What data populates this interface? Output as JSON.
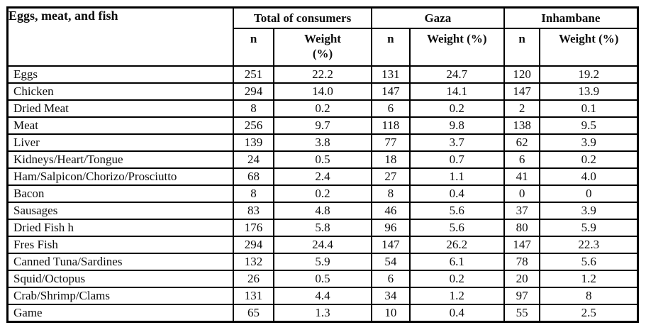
{
  "table": {
    "corner_header": "Eggs, meat, and fish",
    "groups": [
      {
        "label": "Total of consumers",
        "sub": [
          "n",
          "Weight\n(%)"
        ]
      },
      {
        "label": "Gaza",
        "sub": [
          "n",
          "Weight (%)"
        ]
      },
      {
        "label": "Inhambane",
        "sub": [
          "n",
          "Weight (%)"
        ]
      }
    ],
    "rows": [
      {
        "label": "Eggs",
        "values": [
          "251",
          "22.2",
          "131",
          "24.7",
          "120",
          "19.2"
        ]
      },
      {
        "label": "Chicken",
        "values": [
          "294",
          "14.0",
          "147",
          "14.1",
          "147",
          "13.9"
        ]
      },
      {
        "label": "Dried Meat",
        "values": [
          "8",
          "0.2",
          "6",
          "0.2",
          "2",
          "0.1"
        ]
      },
      {
        "label": "Meat",
        "values": [
          "256",
          "9.7",
          "118",
          "9.8",
          "138",
          "9.5"
        ]
      },
      {
        "label": "Liver",
        "values": [
          "139",
          "3.8",
          "77",
          "3.7",
          "62",
          "3.9"
        ]
      },
      {
        "label": "Kidneys/Heart/Tongue",
        "values": [
          "24",
          "0.5",
          "18",
          "0.7",
          "6",
          "0.2"
        ]
      },
      {
        "label": "Ham/Salpicon/Chorizo/Prosciutto",
        "values": [
          "68",
          "2.4",
          "27",
          "1.1",
          "41",
          "4.0"
        ]
      },
      {
        "label": "Bacon",
        "values": [
          "8",
          "0.2",
          "8",
          "0.4",
          "0",
          "0"
        ]
      },
      {
        "label": "Sausages",
        "values": [
          "83",
          "4.8",
          "46",
          "5.6",
          "37",
          "3.9"
        ]
      },
      {
        "label": "Dried Fish h",
        "values": [
          "176",
          "5.8",
          "96",
          "5.6",
          "80",
          "5.9"
        ]
      },
      {
        "label": "Fres Fish",
        "values": [
          "294",
          "24.4",
          "147",
          "26.2",
          "147",
          "22.3"
        ]
      },
      {
        "label": "Canned Tuna/Sardines",
        "values": [
          "132",
          "5.9",
          "54",
          "6.1",
          "78",
          "5.6"
        ]
      },
      {
        "label": "Squid/Octopus",
        "values": [
          "26",
          "0.5",
          "6",
          "0.2",
          "20",
          "1.2"
        ]
      },
      {
        "label": "Crab/Shrimp/Clams",
        "values": [
          "131",
          "4.4",
          "34",
          "1.2",
          "97",
          "8"
        ]
      },
      {
        "label": "Game",
        "values": [
          "65",
          "1.3",
          "10",
          "0.4",
          "55",
          "2.5"
        ]
      }
    ],
    "border_color": "#000000",
    "text_color": "#0d0d0d",
    "background_color": "#ffffff"
  }
}
